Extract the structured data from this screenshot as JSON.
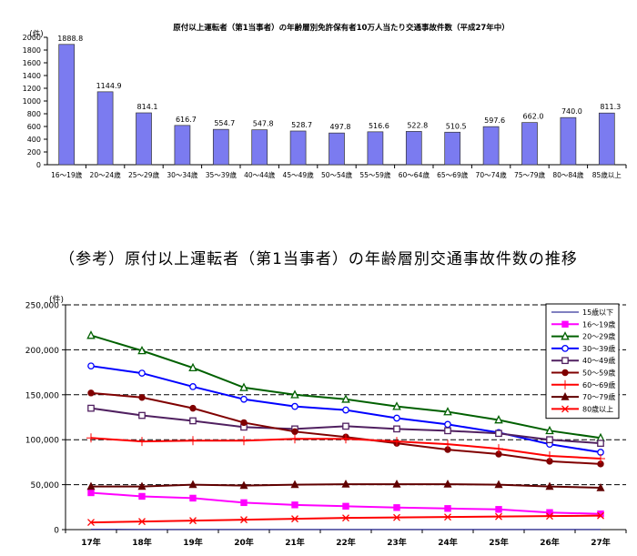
{
  "chart_data": [
    {
      "type": "bar",
      "title": "原付以上運転者（第1当事者）の年齢層別免許保有者10万人当たり交通事故件数（平成27年中）",
      "ylabel": "(件)",
      "ylim": [
        0,
        2000
      ],
      "yticks": [
        0,
        200,
        400,
        600,
        800,
        1000,
        1200,
        1400,
        1600,
        1800,
        2000
      ],
      "categories": [
        "16～19歳",
        "20～24歳",
        "25～29歳",
        "30～34歳",
        "35～39歳",
        "40～44歳",
        "45～49歳",
        "50～54歳",
        "55～59歳",
        "60～64歳",
        "65～69歳",
        "70～74歳",
        "75～79歳",
        "80～84歳",
        "85歳以上"
      ],
      "values": [
        1888.8,
        1144.9,
        814.1,
        616.7,
        554.7,
        547.8,
        528.7,
        497.8,
        516.6,
        522.8,
        510.5,
        597.6,
        662.0,
        740.0,
        811.3
      ],
      "value_labels": [
        "1888.8",
        "1144.9",
        "814.1",
        "616.7",
        "554.7",
        "547.8",
        "528.7",
        "497.8",
        "516.6",
        "522.8",
        "510.5",
        "597.6",
        "662.0",
        "740.0",
        "811.3"
      ],
      "bar_color": "#7b7bf0",
      "grid": false
    },
    {
      "type": "line",
      "title": "（参考）原付以上運転者（第1当事者）の年齢層別交通事故件数の推移",
      "ylabel": "(件)",
      "ylim": [
        0,
        250000
      ],
      "yticks": [
        "0",
        "50,000",
        "100,000",
        "150,000",
        "200,000",
        "250,000"
      ],
      "grid": true,
      "legend_position": "top-right",
      "x": [
        "17年",
        "18年",
        "19年",
        "20年",
        "21年",
        "22年",
        "23年",
        "24年",
        "25年",
        "26年",
        "27年"
      ],
      "series": [
        {
          "name": "15歳以下",
          "color": "#000080",
          "marker": "none",
          "values": [
            200,
            180,
            170,
            160,
            150,
            140,
            130,
            120,
            110,
            100,
            90
          ]
        },
        {
          "name": "16～19歳",
          "color": "#ff00ff",
          "marker": "square",
          "values": [
            41000,
            37000,
            35000,
            30000,
            27500,
            26000,
            24500,
            23500,
            22500,
            19000,
            17500
          ]
        },
        {
          "name": "20～29歳",
          "color": "#006000",
          "marker": "triangle-open",
          "values": [
            216000,
            199000,
            180000,
            158000,
            150000,
            145000,
            137000,
            131000,
            122000,
            110000,
            102000
          ]
        },
        {
          "name": "30～39歳",
          "color": "#0000ff",
          "marker": "circle-open",
          "values": [
            182000,
            174000,
            159000,
            145000,
            137000,
            133000,
            124000,
            117000,
            108000,
            95000,
            86000
          ]
        },
        {
          "name": "40～49歳",
          "color": "#502060",
          "marker": "square-open",
          "values": [
            135000,
            127000,
            121000,
            114000,
            112000,
            115000,
            112000,
            110000,
            107000,
            100000,
            96000
          ]
        },
        {
          "name": "50～59歳",
          "color": "#800000",
          "marker": "circle",
          "values": [
            152000,
            147000,
            135000,
            119000,
            109000,
            103000,
            96000,
            89000,
            84000,
            76000,
            73000
          ]
        },
        {
          "name": "60～69歳",
          "color": "#ff0000",
          "marker": "plus",
          "values": [
            102000,
            98000,
            99000,
            99000,
            101000,
            101000,
            98000,
            95000,
            90000,
            82000,
            79000
          ]
        },
        {
          "name": "70～79歳",
          "color": "#600000",
          "marker": "triangle",
          "values": [
            48000,
            48000,
            50000,
            49000,
            50000,
            50500,
            50500,
            50500,
            50000,
            48000,
            46500
          ]
        },
        {
          "name": "80歳以上",
          "color": "#ff0000",
          "marker": "x",
          "values": [
            8000,
            9000,
            10000,
            11000,
            12000,
            13000,
            13500,
            14000,
            14500,
            15000,
            15500
          ]
        }
      ]
    }
  ]
}
